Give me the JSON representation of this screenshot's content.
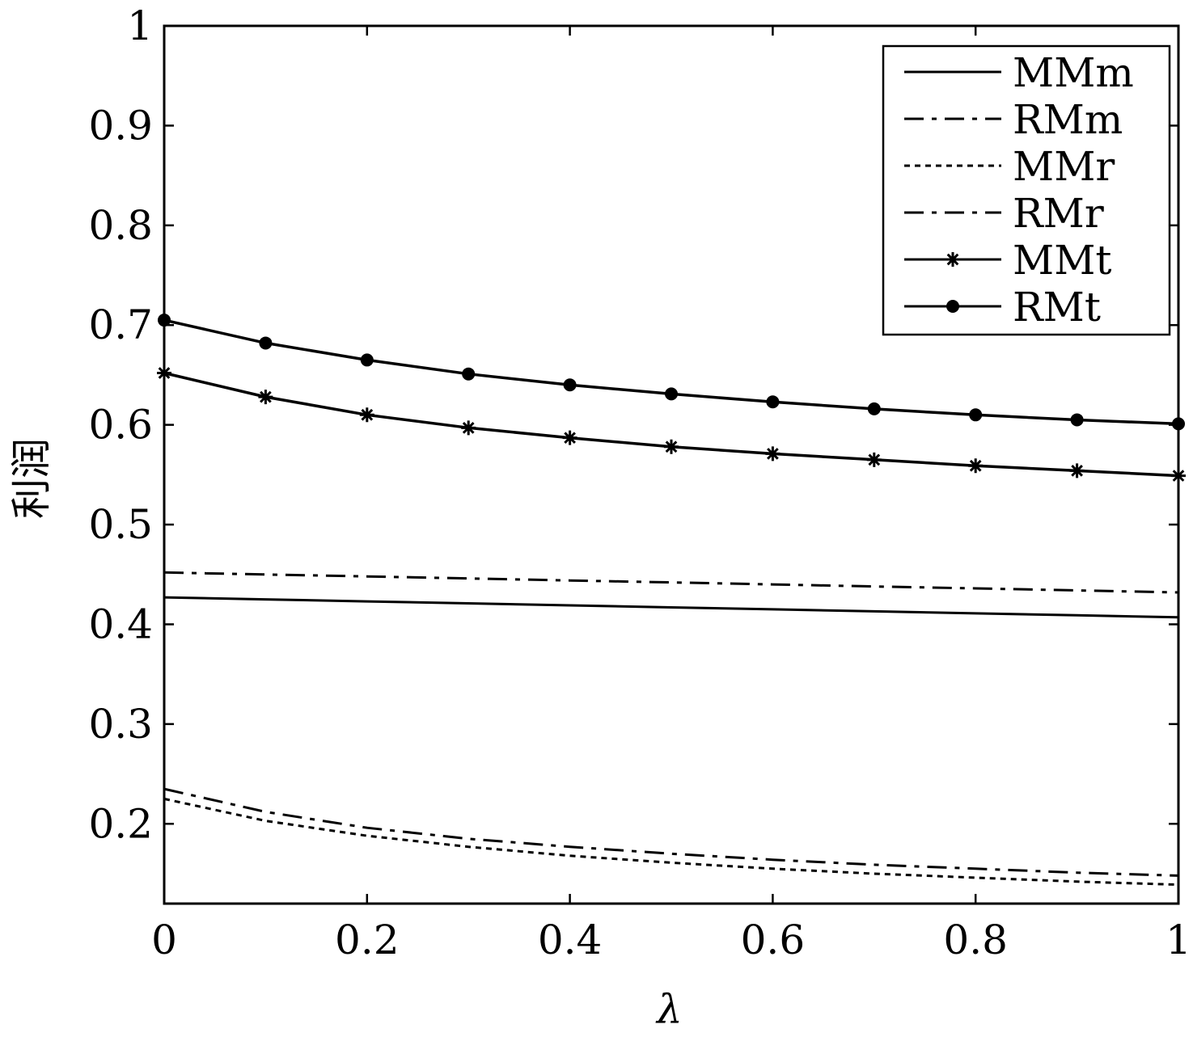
{
  "chart_data": {
    "type": "line",
    "title": "",
    "xlabel": "λ",
    "ylabel": "利润",
    "xlim": [
      0,
      1
    ],
    "ylim": [
      0.12,
      1
    ],
    "xticks": [
      0,
      0.2,
      0.4,
      0.6,
      0.8,
      1
    ],
    "xtick_labels": [
      "0",
      "0.2",
      "0.4",
      "0.6",
      "0.8",
      "1"
    ],
    "yticks": [
      0.2,
      0.3,
      0.4,
      0.5,
      0.6,
      0.7,
      0.8,
      0.9,
      1
    ],
    "ytick_labels": [
      "0.2",
      "0.3",
      "0.4",
      "0.5",
      "0.6",
      "0.7",
      "0.8",
      "0.9",
      "1"
    ],
    "grid": false,
    "legend_position": "top-right",
    "series": [
      {
        "name": "MMm",
        "style": "solid",
        "marker": "none",
        "x": [
          0,
          0.1,
          0.2,
          0.3,
          0.4,
          0.5,
          0.6,
          0.7,
          0.8,
          0.9,
          1
        ],
        "y": [
          0.427,
          0.425,
          0.423,
          0.421,
          0.419,
          0.417,
          0.415,
          0.413,
          0.411,
          0.409,
          0.407
        ]
      },
      {
        "name": "RMm",
        "style": "dashdot",
        "marker": "none",
        "x": [
          0,
          0.1,
          0.2,
          0.3,
          0.4,
          0.5,
          0.6,
          0.7,
          0.8,
          0.9,
          1
        ],
        "y": [
          0.452,
          0.45,
          0.448,
          0.446,
          0.444,
          0.442,
          0.44,
          0.438,
          0.436,
          0.434,
          0.432
        ]
      },
      {
        "name": "MMr",
        "style": "dotted",
        "marker": "none",
        "x": [
          0,
          0.1,
          0.2,
          0.3,
          0.4,
          0.5,
          0.6,
          0.7,
          0.8,
          0.9,
          1
        ],
        "y": [
          0.225,
          0.203,
          0.188,
          0.177,
          0.168,
          0.161,
          0.155,
          0.15,
          0.146,
          0.142,
          0.139
        ]
      },
      {
        "name": "RMr",
        "style": "dashdot",
        "marker": "none",
        "x": [
          0,
          0.1,
          0.2,
          0.3,
          0.4,
          0.5,
          0.6,
          0.7,
          0.8,
          0.9,
          1
        ],
        "y": [
          0.235,
          0.212,
          0.196,
          0.185,
          0.177,
          0.17,
          0.164,
          0.159,
          0.155,
          0.151,
          0.148
        ]
      },
      {
        "name": "MMt",
        "style": "solid",
        "marker": "star",
        "x": [
          0,
          0.1,
          0.2,
          0.3,
          0.4,
          0.5,
          0.6,
          0.7,
          0.8,
          0.9,
          1
        ],
        "y": [
          0.652,
          0.628,
          0.61,
          0.597,
          0.587,
          0.578,
          0.571,
          0.565,
          0.559,
          0.554,
          0.549
        ]
      },
      {
        "name": "RMt",
        "style": "solid",
        "marker": "dot",
        "x": [
          0,
          0.1,
          0.2,
          0.3,
          0.4,
          0.5,
          0.6,
          0.7,
          0.8,
          0.9,
          1
        ],
        "y": [
          0.705,
          0.682,
          0.665,
          0.651,
          0.64,
          0.631,
          0.623,
          0.616,
          0.61,
          0.605,
          0.601
        ]
      }
    ]
  }
}
